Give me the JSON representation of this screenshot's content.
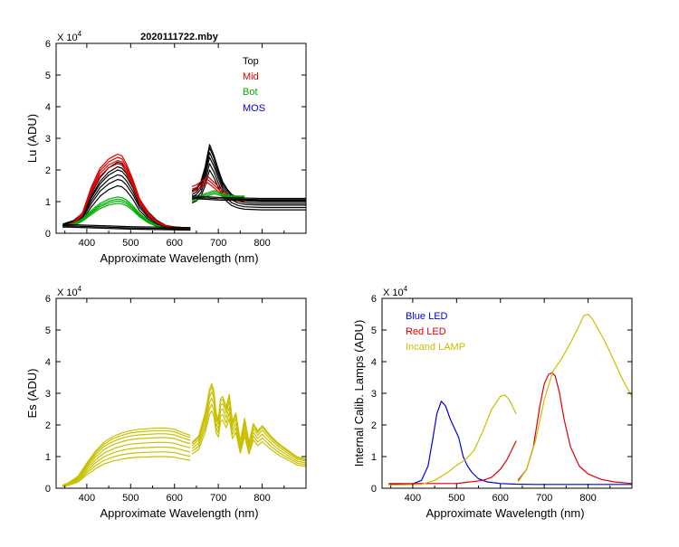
{
  "chart_data": [
    {
      "id": "lu",
      "type": "line",
      "title": "2020111722.mby",
      "xlabel": "Approximate Wavelength (nm)",
      "ylabel": "Lu (ADU)",
      "multiplier": "X 10",
      "exponent": "4",
      "xlim": [
        330,
        900
      ],
      "ylim": [
        0,
        6
      ],
      "xticks": [
        400,
        500,
        600,
        700,
        800
      ],
      "yticks": [
        0,
        1,
        2,
        3,
        4,
        5,
        6
      ],
      "legend": [
        {
          "label": "Top",
          "color": "#000000"
        },
        {
          "label": "Mid",
          "color": "#e00000"
        },
        {
          "label": "Bot",
          "color": "#00b000"
        },
        {
          "label": "MOS",
          "color": "#0000e0"
        }
      ],
      "series": [
        {
          "name": "Top",
          "color": "#000000",
          "segments": [
            {
              "x": [
                345,
                370,
                390,
                410,
                430,
                450,
                470,
                480,
                490,
                505,
                520,
                540,
                560,
                580,
                600,
                620,
                636
              ],
              "scales": [
                1.5,
                1.7,
                1.85,
                2.0,
                2.1,
                2.25
              ],
              "shape": [
                0.13,
                0.18,
                0.28,
                0.55,
                0.78,
                0.92,
                1.0,
                0.98,
                0.9,
                0.72,
                0.48,
                0.3,
                0.18,
                0.11,
                0.09,
                0.08,
                0.08
              ]
            },
            {
              "x": [
                640,
                650,
                660,
                670,
                675,
                680,
                690,
                700,
                710,
                720,
                730,
                745,
                760,
                800,
                850,
                900
              ],
              "scales": [
                2.0,
                2.2,
                2.4,
                2.55,
                2.7,
                2.8
              ],
              "shape": [
                0.48,
                0.51,
                0.58,
                0.75,
                0.88,
                1.0,
                0.88,
                0.72,
                0.58,
                0.5,
                0.44,
                0.4,
                0.38,
                0.37,
                0.37,
                0.37
              ]
            }
          ]
        },
        {
          "name": "Mid",
          "color": "#e00000",
          "segments": [
            {
              "x": [
                345,
                370,
                390,
                410,
                430,
                450,
                470,
                480,
                490,
                505,
                520,
                540,
                560,
                580,
                600,
                620,
                636
              ],
              "scales": [
                2.2,
                2.3,
                2.4,
                2.5
              ],
              "shape": [
                0.09,
                0.14,
                0.26,
                0.58,
                0.82,
                0.94,
                1.0,
                0.98,
                0.88,
                0.68,
                0.44,
                0.26,
                0.15,
                0.1,
                0.08,
                0.07,
                0.07
              ]
            },
            {
              "x": [
                640,
                650,
                660,
                670,
                675,
                680,
                690,
                700,
                710,
                720,
                730,
                745,
                760
              ],
              "scales": [
                1.6,
                1.7,
                1.8
              ],
              "shape": [
                0.82,
                0.85,
                0.9,
                0.96,
                1.0,
                0.97,
                0.9,
                0.82,
                0.74,
                0.68,
                0.66,
                0.64,
                0.63
              ]
            }
          ]
        },
        {
          "name": "Bot",
          "color": "#00b000",
          "segments": [
            {
              "x": [
                345,
                370,
                390,
                410,
                430,
                450,
                470,
                480,
                490,
                505,
                520,
                540,
                560,
                580,
                600,
                620,
                636
              ],
              "scales": [
                0.95,
                1.02,
                1.08,
                1.15
              ],
              "shape": [
                0.2,
                0.26,
                0.4,
                0.62,
                0.82,
                0.94,
                1.0,
                0.98,
                0.92,
                0.76,
                0.55,
                0.35,
                0.22,
                0.15,
                0.12,
                0.11,
                0.11
              ]
            },
            {
              "x": [
                640,
                650,
                660,
                670,
                680,
                690,
                700,
                710,
                720,
                730,
                745,
                760
              ],
              "scales": [
                1.25,
                1.3,
                1.35
              ],
              "shape": [
                0.8,
                0.84,
                0.88,
                0.93,
                0.96,
                1.0,
                0.97,
                0.93,
                0.9,
                0.88,
                0.87,
                0.87
              ]
            }
          ]
        },
        {
          "name": "MOS",
          "color": "#0000e0",
          "segments": []
        }
      ],
      "dark_lines": {
        "color": "#000000",
        "segments": [
          {
            "x": [
              345,
              500,
              636
            ],
            "y": [
              0.2,
              0.13,
              0.1
            ]
          },
          {
            "x": [
              640,
              700,
              800,
              900
            ],
            "y": [
              1.1,
              1.05,
              1.02,
              1.02
            ]
          }
        ]
      }
    },
    {
      "id": "es",
      "type": "line",
      "title": "",
      "xlabel": "Approximate Wavelength (nm)",
      "ylabel": "Es  (ADU)",
      "multiplier": "X 10",
      "exponent": "4",
      "xlim": [
        330,
        900
      ],
      "ylim": [
        0,
        6
      ],
      "xticks": [
        400,
        500,
        600,
        700,
        800
      ],
      "yticks": [
        0,
        1,
        2,
        3,
        4,
        5,
        6
      ],
      "legend": [],
      "series": [
        {
          "name": "Es",
          "color": "#c8c000",
          "segments": [
            {
              "x": [
                345,
                360,
                380,
                400,
                420,
                440,
                460,
                480,
                500,
                520,
                540,
                560,
                580,
                600,
                620,
                636
              ],
              "scales": [
                1.0,
                1.15,
                1.3,
                1.45,
                1.6,
                1.72,
                1.82,
                1.9
              ],
              "shape": [
                0.05,
                0.1,
                0.2,
                0.42,
                0.62,
                0.77,
                0.86,
                0.92,
                0.96,
                0.98,
                0.99,
                1.0,
                1.0,
                0.98,
                0.92,
                0.88
              ]
            },
            {
              "x": [
                640,
                655,
                670,
                680,
                685,
                690,
                695,
                700,
                705,
                710,
                718,
                725,
                732,
                740,
                750,
                760,
                770,
                780,
                790,
                800,
                820,
                840,
                860,
                880,
                900
              ],
              "scales": [
                2.45,
                2.65,
                2.85,
                3.05,
                3.2,
                3.3
              ],
              "shape": [
                0.44,
                0.5,
                0.72,
                0.95,
                1.0,
                0.93,
                0.72,
                0.66,
                0.86,
                0.88,
                0.78,
                0.9,
                0.64,
                0.72,
                0.45,
                0.67,
                0.44,
                0.62,
                0.55,
                0.6,
                0.5,
                0.42,
                0.36,
                0.3,
                0.28
              ]
            }
          ]
        }
      ]
    },
    {
      "id": "calib",
      "type": "line",
      "title": "",
      "xlabel": "Approximate Wavelength (nm)",
      "ylabel": "Internal Calib. Lamps  (ADU)",
      "multiplier": "X 10",
      "exponent": "4",
      "xlim": [
        330,
        900
      ],
      "ylim": [
        0,
        6
      ],
      "xticks": [
        400,
        500,
        600,
        700,
        800
      ],
      "yticks": [
        0,
        1,
        2,
        3,
        4,
        5,
        6
      ],
      "legend": [
        {
          "label": "Blue LED",
          "color": "#0000e0"
        },
        {
          "label": "Red LED",
          "color": "#e00000"
        },
        {
          "label": "Incand LAMP",
          "color": "#c8c000"
        }
      ],
      "series": [
        {
          "name": "Blue LED",
          "color": "#0000e0",
          "segments": [
            {
              "x": [
                345,
                400,
                420,
                435,
                445,
                455,
                465,
                475,
                485,
                495,
                505,
                515,
                525,
                535,
                550,
                570,
                600,
                636,
                680,
                750,
                850,
                900
              ],
              "y": [
                0.12,
                0.14,
                0.25,
                0.7,
                1.5,
                2.35,
                2.75,
                2.6,
                2.2,
                1.9,
                1.6,
                1.0,
                0.7,
                0.5,
                0.3,
                0.2,
                0.15,
                0.13,
                0.12,
                0.12,
                0.12,
                0.12
              ],
              "scales": [
                1
              ]
            }
          ]
        },
        {
          "name": "Red LED",
          "color": "#e00000",
          "segments": [
            {
              "x": [
                345,
                500,
                560,
                580,
                600,
                615,
                636
              ],
              "y": [
                0.15,
                0.15,
                0.25,
                0.35,
                0.6,
                0.9,
                1.5
              ],
              "scales": [
                1
              ]
            },
            {
              "x": [
                640,
                660,
                675,
                690,
                700,
                710,
                718,
                725,
                735,
                745,
                760,
                780,
                800,
                830,
                860,
                900
              ],
              "y": [
                0.25,
                0.6,
                1.3,
                2.6,
                3.3,
                3.6,
                3.65,
                3.55,
                3.0,
                2.2,
                1.3,
                0.7,
                0.45,
                0.28,
                0.2,
                0.15
              ],
              "scales": [
                1
              ]
            }
          ]
        },
        {
          "name": "Incand LAMP",
          "color": "#c8c000",
          "segments": [
            {
              "x": [
                345,
                420,
                450,
                480,
                500,
                520,
                540,
                560,
                580,
                600,
                610,
                620,
                636
              ],
              "y": [
                0.1,
                0.12,
                0.25,
                0.5,
                0.72,
                0.9,
                1.2,
                1.8,
                2.5,
                2.9,
                2.95,
                2.8,
                2.35
              ],
              "scales": [
                1
              ]
            },
            {
              "x": [
                640,
                660,
                680,
                700,
                720,
                740,
                760,
                780,
                790,
                800,
                810,
                820,
                840,
                860,
                880,
                900
              ],
              "y": [
                0.2,
                0.6,
                1.5,
                2.8,
                3.7,
                4.1,
                4.6,
                5.15,
                5.45,
                5.5,
                5.35,
                5.1,
                4.6,
                4.0,
                3.4,
                2.9
              ],
              "scales": [
                1
              ]
            }
          ]
        }
      ]
    }
  ]
}
